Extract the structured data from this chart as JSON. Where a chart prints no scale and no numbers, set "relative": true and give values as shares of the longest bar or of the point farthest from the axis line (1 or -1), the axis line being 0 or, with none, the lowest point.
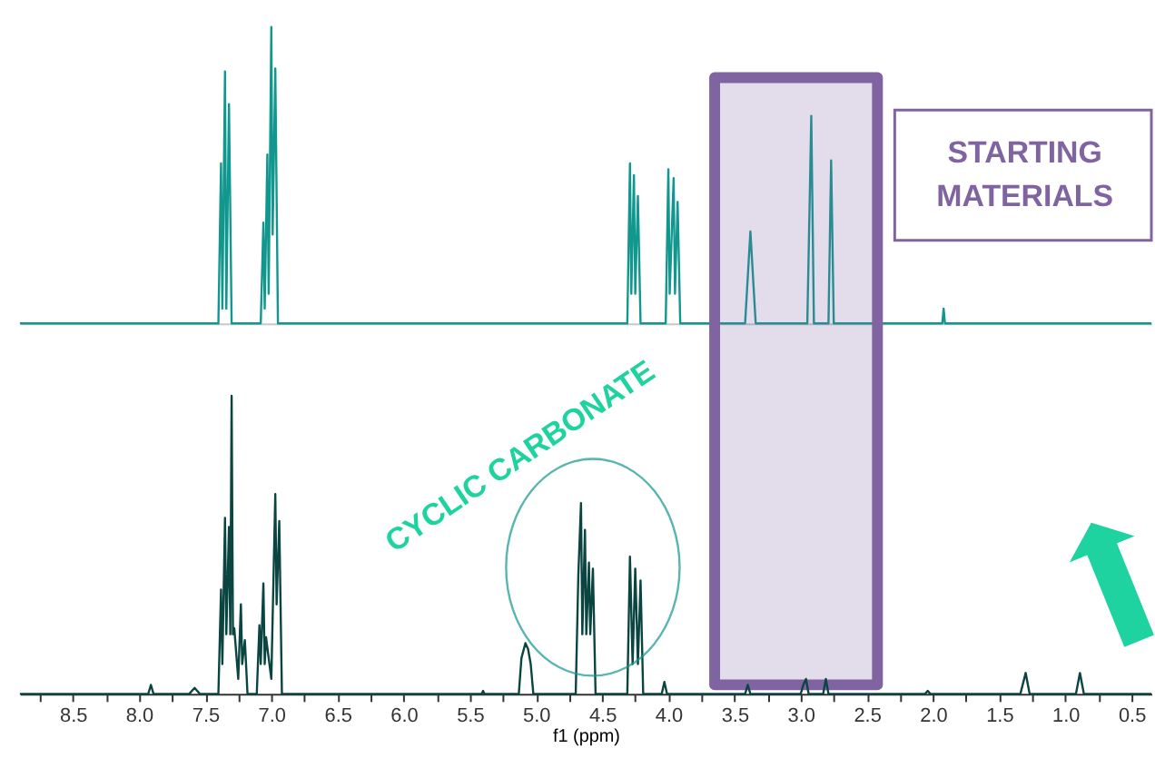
{
  "chart_data": [
    {
      "type": "line",
      "relative": true,
      "tick_labels": false,
      "xlim": [
        8.9,
        0.35
      ],
      "color": "#12978f",
      "x": [
        8.9,
        7.4,
        7.38,
        7.37,
        7.35,
        7.34,
        7.32,
        7.3,
        7.08,
        7.06,
        7.05,
        7.03,
        7.02,
        7.0,
        6.99,
        6.97,
        6.95,
        4.31,
        4.29,
        4.28,
        4.26,
        4.25,
        4.23,
        4.21,
        4.02,
        4.0,
        3.99,
        3.96,
        3.95,
        3.93,
        3.91,
        3.42,
        3.38,
        3.34,
        2.95,
        2.93,
        2.92,
        2.9,
        2.79,
        2.77,
        2.75,
        1.93,
        1.92,
        1.91,
        0.35
      ],
      "values": [
        0,
        0,
        0.54,
        0.05,
        0.85,
        0.05,
        0.74,
        0,
        0,
        0.34,
        0.05,
        0.57,
        0.1,
        1.0,
        0.3,
        0.86,
        0,
        0,
        0.54,
        0.1,
        0.5,
        0.1,
        0.43,
        0,
        0,
        0.52,
        0.1,
        0.49,
        0.1,
        0.41,
        0,
        0,
        0.31,
        0,
        0,
        0.46,
        0.7,
        0,
        0,
        0.55,
        0,
        0,
        0.05,
        0,
        0
      ],
      "bands": [
        {
          "axis": "x",
          "from": 3.65,
          "to": 2.42,
          "color": "#8064a2"
        }
      ],
      "annotations": [
        "STARTING MATERIALS"
      ]
    },
    {
      "type": "line",
      "relative": true,
      "xlim": [
        8.9,
        0.35
      ],
      "xlabel": "f1 (ppm)",
      "color": "#0b4541",
      "xticks": [
        {
          "value": 8.75,
          "label": null
        },
        8.5,
        {
          "value": 8.25,
          "label": null
        },
        {
          "value": 8,
          "label": "8.0"
        },
        {
          "value": 7.75,
          "label": null
        },
        7.5,
        {
          "value": 7.25,
          "label": null
        },
        {
          "value": 7,
          "label": "7.0"
        },
        {
          "value": 6.75,
          "label": null
        },
        6.5,
        {
          "value": 6.25,
          "label": null
        },
        {
          "value": 6,
          "label": "6.0"
        },
        {
          "value": 5.75,
          "label": null
        },
        5.5,
        {
          "value": 5.25,
          "label": null
        },
        {
          "value": 5,
          "label": "5.0"
        },
        {
          "value": 4.75,
          "label": null
        },
        4.5,
        {
          "value": 4.25,
          "label": null
        },
        {
          "value": 4,
          "label": "4.0"
        },
        {
          "value": 3.75,
          "label": null
        },
        3.5,
        {
          "value": 3.25,
          "label": null
        },
        {
          "value": 3,
          "label": "3.0"
        },
        {
          "value": 2.75,
          "label": null
        },
        2.5,
        {
          "value": 2.25,
          "label": null
        },
        {
          "value": 2,
          "label": "2.0"
        },
        {
          "value": 1.75,
          "label": null
        },
        1.5,
        {
          "value": 1.25,
          "label": null
        },
        {
          "value": 1,
          "label": "1.0"
        },
        {
          "value": 0.75,
          "label": null
        },
        0.5
      ],
      "x": [
        8.9,
        7.93,
        7.91,
        7.89,
        7.62,
        7.58,
        7.54,
        7.4,
        7.38,
        7.37,
        7.35,
        7.34,
        7.32,
        7.31,
        7.3,
        7.29,
        7.28,
        7.25,
        7.23,
        7.22,
        7.2,
        7.18,
        7.11,
        7.09,
        7.08,
        7.06,
        7.05,
        7.04,
        7.0,
        6.97,
        6.96,
        6.94,
        6.92,
        5.41,
        5.4,
        5.39,
        5.13,
        5.11,
        5.08,
        5.06,
        5.04,
        5.02,
        4.7,
        4.68,
        4.66,
        4.65,
        4.63,
        4.62,
        4.6,
        4.59,
        4.57,
        4.55,
        4.31,
        4.29,
        4.27,
        4.25,
        4.23,
        4.21,
        4.19,
        4.05,
        4.03,
        4.01,
        3.42,
        3.4,
        3.38,
        3.0,
        2.98,
        2.96,
        2.94,
        2.83,
        2.81,
        2.79,
        2.06,
        2.04,
        2.02,
        1.34,
        1.3,
        1.27,
        0.92,
        0.89,
        0.86,
        0.35
      ],
      "values": [
        0,
        0,
        0.03,
        0,
        0,
        0.02,
        0,
        0,
        0.35,
        0.1,
        0.59,
        0.2,
        0.56,
        0.2,
        1.0,
        0.2,
        0.22,
        0.05,
        0.3,
        0.1,
        0.18,
        0,
        0,
        0.23,
        0.1,
        0.37,
        0.1,
        0.19,
        0.05,
        0.67,
        0.3,
        0.58,
        0,
        0,
        0.01,
        0,
        0,
        0.12,
        0.17,
        0.15,
        0.1,
        0,
        0,
        0.4,
        0.64,
        0.2,
        0.55,
        0.2,
        0.44,
        0.2,
        0.42,
        0,
        0,
        0.46,
        0.1,
        0.42,
        0.1,
        0.38,
        0,
        0,
        0.04,
        0,
        0,
        0.03,
        0,
        0,
        0.03,
        0.05,
        0,
        0,
        0.05,
        0,
        0,
        0.01,
        0,
        0,
        0.07,
        0,
        0,
        0.07,
        0,
        0
      ],
      "annotations": [
        "CYCLIC CARBONATE"
      ]
    }
  ]
}
